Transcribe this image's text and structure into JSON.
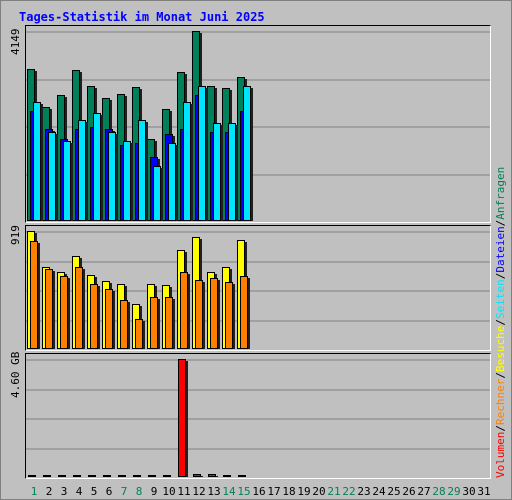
{
  "chart_data": {
    "type": "bar",
    "title": "Tages-Statistik im Monat Juni 2025",
    "x": [
      "1",
      "2",
      "3",
      "4",
      "5",
      "6",
      "7",
      "8",
      "9",
      "10",
      "11",
      "12",
      "13",
      "14",
      "15",
      "16",
      "17",
      "18",
      "19",
      "20",
      "21",
      "22",
      "23",
      "24",
      "25",
      "26",
      "27",
      "28",
      "29",
      "30",
      "31"
    ],
    "weekend_days": [
      "1",
      "7",
      "8",
      "14",
      "15",
      "21",
      "22",
      "28",
      "29"
    ],
    "panels": [
      {
        "max_label": "4149",
        "ylim": [
          0,
          4149
        ],
        "series": [
          {
            "name": "Anfragen",
            "color": "#00805a",
            "values": [
              3330,
              2500,
              2750,
              3300,
              2950,
              2680,
              2780,
              2930,
              1800,
              2450,
              3250,
              4150,
              2950,
              2900,
              3150,
              0,
              0,
              0,
              0,
              0,
              0,
              0,
              0,
              0,
              0,
              0,
              0,
              0,
              0,
              0,
              0
            ]
          },
          {
            "name": "Dateien",
            "color": "#0000ff",
            "values": [
              2400,
              2000,
              1800,
              2000,
              2050,
              2000,
              1650,
              1700,
              1400,
              1900,
              2000,
              2750,
              1950,
              1950,
              2400,
              0,
              0,
              0,
              0,
              0,
              0,
              0,
              0,
              0,
              0,
              0,
              0,
              0,
              0,
              0,
              0
            ]
          },
          {
            "name": "Seiten",
            "color": "#00e5ff",
            "values": [
              2600,
              1950,
              1750,
              2200,
              2350,
              1950,
              1750,
              2200,
              1200,
              1700,
              2600,
              2950,
              2150,
              2150,
              2950,
              0,
              0,
              0,
              0,
              0,
              0,
              0,
              0,
              0,
              0,
              0,
              0,
              0,
              0,
              0,
              0
            ]
          }
        ]
      },
      {
        "max_label": "919",
        "ylim": [
          0,
          919
        ],
        "series": [
          {
            "name": "Besuche",
            "color": "#ffff00",
            "values": [
              919,
              640,
              600,
              725,
              575,
              530,
              510,
              350,
              510,
              500,
              770,
              870,
              600,
              635,
              850,
              0,
              0,
              0,
              0,
              0,
              0,
              0,
              0,
              0,
              0,
              0,
              0,
              0,
              0,
              0,
              0
            ]
          },
          {
            "name": "Rechner",
            "color": "#ff8000",
            "values": [
              840,
              620,
              565,
              640,
              510,
              465,
              385,
              235,
              405,
              405,
              600,
              540,
              555,
              520,
              565,
              0,
              0,
              0,
              0,
              0,
              0,
              0,
              0,
              0,
              0,
              0,
              0,
              0,
              0,
              0,
              0
            ]
          }
        ]
      },
      {
        "max_label": "4.60 GB",
        "ylim": [
          0,
          4.6
        ],
        "series": [
          {
            "name": "Volumen",
            "color": "#ff0000",
            "values": [
              0.09,
              0.09,
              0.09,
              0.09,
              0.09,
              0.09,
              0.09,
              0.09,
              0.06,
              0.06,
              4.6,
              0.12,
              0.1,
              0.09,
              0.08,
              0,
              0,
              0,
              0,
              0,
              0,
              0,
              0,
              0,
              0,
              0,
              0,
              0,
              0,
              0,
              0
            ]
          }
        ]
      }
    ],
    "legend": [
      "Volumen",
      "/",
      "Rechner",
      "/",
      "Besuche",
      "/",
      "Seiten",
      "/",
      "Dateien",
      "/",
      "Anfragen"
    ],
    "legend_colors": [
      "#ff0000",
      "#000000",
      "#ff8000",
      "#000000",
      "#ffff00",
      "#000000",
      "#00e5ff",
      "#000000",
      "#0000ff",
      "#000000",
      "#00805a"
    ]
  }
}
